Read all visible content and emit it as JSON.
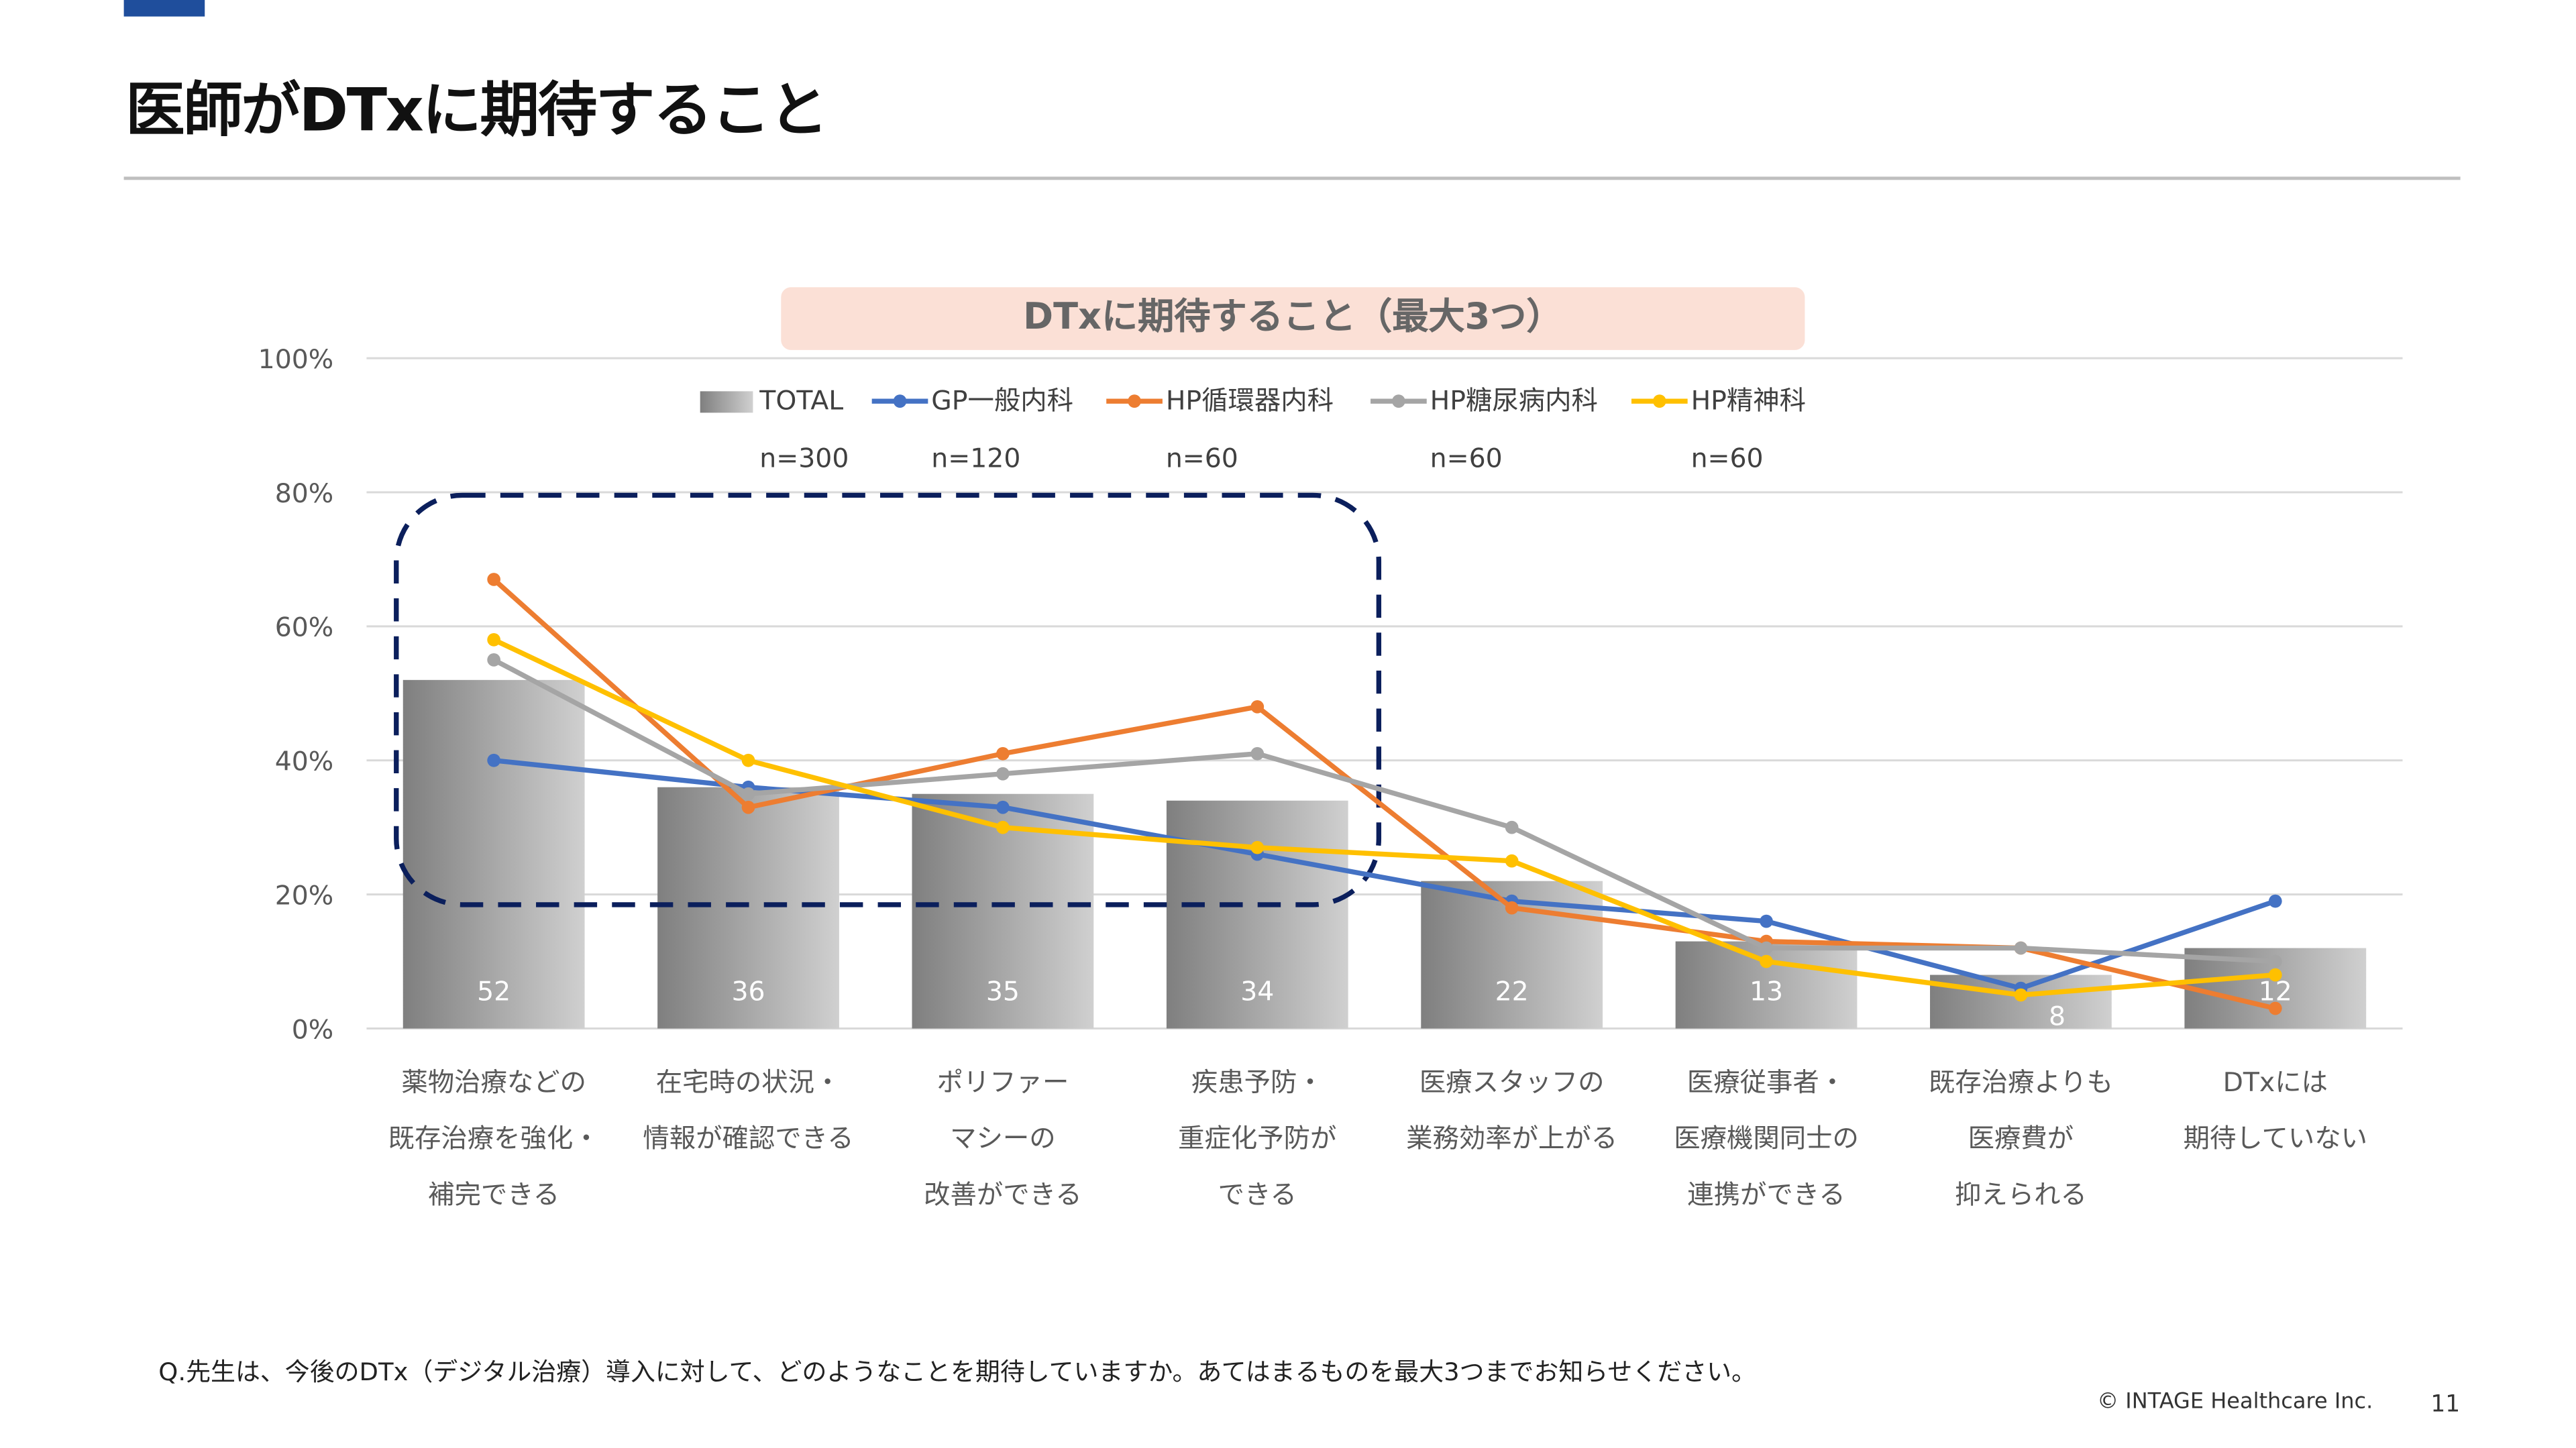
{
  "header": {
    "title": "医師がDTxに期待すること"
  },
  "footer": {
    "question": "Q.先生は、今後のDTx（デジタル治療）導入に対して、どのようなことを期待していますか。あてはまるものを最大3つまでお知らせください。",
    "copyright": "© INTAGE Healthcare Inc.",
    "page": "11"
  },
  "chart_data": {
    "type": "bar+line",
    "title": "DTxに期待すること（最大3つ）",
    "ylim": [
      0,
      100
    ],
    "yticks": [
      "0%",
      "20%",
      "40%",
      "60%",
      "80%",
      "100%"
    ],
    "grid": true,
    "legend_position": "top",
    "categories": [
      [
        "薬物治療などの",
        "既存治療を強化・",
        "補完できる"
      ],
      [
        "在宅時の状況・",
        "情報が確認できる"
      ],
      [
        "ポリファー",
        "マシーの",
        "改善ができる"
      ],
      [
        "疾患予防・",
        "重症化予防が",
        "できる"
      ],
      [
        "医療スタッフの",
        "業務効率が上がる"
      ],
      [
        "医療従事者・",
        "医療機関同士の",
        "連携ができる"
      ],
      [
        "既存治療よりも",
        "医療費が",
        "抑えられる"
      ],
      [
        "DTxには",
        "期待していない"
      ]
    ],
    "series": [
      {
        "name": "TOTAL",
        "n": "n=300",
        "kind": "bar",
        "color": "#a6a6a6",
        "values": [
          52,
          36,
          35,
          34,
          22,
          13,
          8,
          12
        ]
      },
      {
        "name": "GP一般内科",
        "n": "n=120",
        "kind": "line",
        "color": "#4472c4",
        "values": [
          40,
          36,
          33,
          26,
          19,
          16,
          6,
          19
        ]
      },
      {
        "name": "HP循環器内科",
        "n": "n=60",
        "kind": "line",
        "color": "#ed7d31",
        "values": [
          67,
          33,
          41,
          48,
          18,
          13,
          12,
          3
        ]
      },
      {
        "name": "HP糖尿病内科",
        "n": "n=60",
        "kind": "line",
        "color": "#a5a5a5",
        "values": [
          55,
          35,
          38,
          41,
          30,
          12,
          12,
          10
        ]
      },
      {
        "name": "HP精神科",
        "n": "n=60",
        "kind": "line",
        "color": "#ffc000",
        "values": [
          58,
          40,
          30,
          27,
          25,
          10,
          5,
          8
        ]
      }
    ],
    "highlight_color": "#0b1f5c"
  }
}
